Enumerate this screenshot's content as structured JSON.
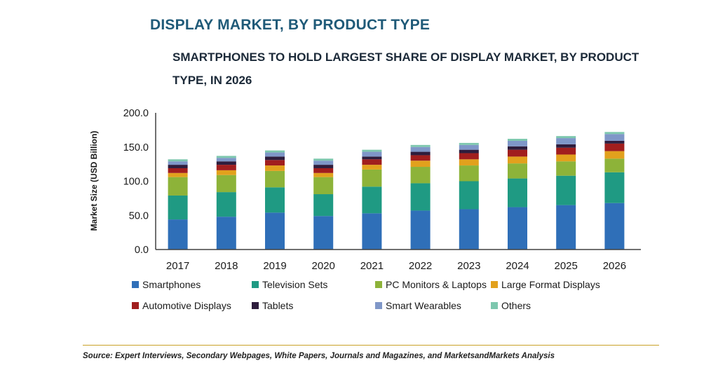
{
  "title": "DISPLAY MARKET, BY PRODUCT TYPE",
  "subtitle": "SMARTPHONES TO HOLD LARGEST SHARE OF DISPLAY MARKET, BY PRODUCT TYPE, IN 2026",
  "source": "Source: Expert Interviews, Secondary Webpages, White Papers, Journals and Magazines, and MarketsandMarkets Analysis",
  "colors": {
    "smartphones": "#2f6fb8",
    "television": "#1f9a83",
    "pc": "#8db339",
    "large": "#e2a11d",
    "automotive": "#a11e1e",
    "tablets": "#2e1d3d",
    "wearables": "#7f97c8",
    "others": "#7dc7ae",
    "title": "#1f5a78",
    "source_rule": "#c9a227"
  },
  "chart_data": {
    "type": "bar",
    "stacked": true,
    "ylabel": "Market Size (USD Billion)",
    "ylim": [
      0,
      200
    ],
    "yticks": [
      "0.0",
      "50.0",
      "100.0",
      "150.0",
      "200.0"
    ],
    "categories": [
      "2017",
      "2018",
      "2019",
      "2020",
      "2021",
      "2022",
      "2023",
      "2024",
      "2025",
      "2026"
    ],
    "legend_position": "bottom",
    "series": [
      {
        "name": "Smartphones",
        "color": "#2f6fb8",
        "values": [
          44,
          48,
          54,
          49,
          53,
          57,
          59,
          62,
          65,
          68
        ]
      },
      {
        "name": "Television Sets",
        "color": "#1f9a83",
        "values": [
          35,
          36,
          37,
          32,
          39,
          40,
          41,
          42,
          43,
          45
        ]
      },
      {
        "name": "PC Monitors & Laptops",
        "color": "#8db339",
        "values": [
          27,
          25,
          24,
          25,
          25,
          24,
          23,
          22,
          21,
          20
        ]
      },
      {
        "name": "Large Format Displays",
        "color": "#e2a11d",
        "values": [
          6,
          7,
          8,
          6,
          7,
          9,
          9,
          10,
          10,
          11
        ]
      },
      {
        "name": "Automotive Displays",
        "color": "#a11e1e",
        "values": [
          7,
          8,
          8,
          7,
          8,
          8,
          9,
          10,
          10,
          11
        ]
      },
      {
        "name": "Tablets",
        "color": "#2e1d3d",
        "values": [
          5,
          5,
          5,
          5,
          4,
          5,
          5,
          5,
          5,
          4
        ]
      },
      {
        "name": "Smart Wearables",
        "color": "#7f97c8",
        "values": [
          5,
          5,
          6,
          6,
          7,
          7,
          7,
          8,
          9,
          10
        ]
      },
      {
        "name": "Others",
        "color": "#7dc7ae",
        "values": [
          3,
          3,
          3,
          3,
          3,
          3,
          3,
          3,
          3,
          3
        ]
      }
    ]
  }
}
